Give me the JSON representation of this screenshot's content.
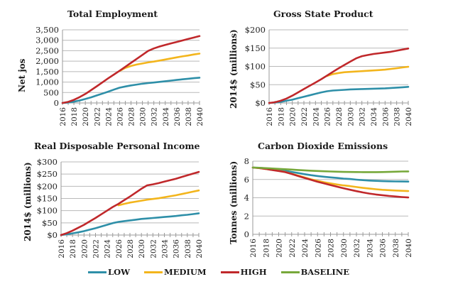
{
  "legend": [
    {
      "name": "LOW",
      "color": "#2e8fa8"
    },
    {
      "name": "MEDIUM",
      "color": "#f3b51c"
    },
    {
      "name": "HIGH",
      "color": "#c0282b"
    },
    {
      "name": "BASELINE",
      "color": "#77a83a"
    }
  ],
  "chart_data": [
    {
      "type": "line",
      "title": "Total Employment",
      "xlabel": "",
      "ylabel": "Net jos",
      "ylim": [
        0,
        3500
      ],
      "yticks": [
        0,
        500,
        1000,
        1500,
        2000,
        2500,
        3000,
        3500
      ],
      "ytick_labels": [
        "0",
        "500",
        "1,000",
        "1,500",
        "2,000",
        "2,500",
        "3,000",
        "3,500"
      ],
      "grid": true,
      "x": [
        2016,
        2017,
        2018,
        2019,
        2020,
        2021,
        2022,
        2023,
        2024,
        2025,
        2026,
        2027,
        2028,
        2029,
        2030,
        2031,
        2032,
        2033,
        2034,
        2035,
        2036,
        2037,
        2038,
        2039,
        2040
      ],
      "xtick_labels": [
        "2016",
        "2018",
        "2020",
        "2022",
        "2024",
        "2026",
        "2028",
        "2030",
        "2032",
        "2034",
        "2036",
        "2038",
        "2040"
      ],
      "series": [
        {
          "name": "LOW",
          "values": [
            0,
            20,
            60,
            120,
            190,
            270,
            360,
            450,
            540,
            640,
            730,
            790,
            840,
            880,
            920,
            950,
            980,
            1010,
            1040,
            1070,
            1100,
            1130,
            1160,
            1185,
            1210
          ]
        },
        {
          "name": "MEDIUM",
          "values": [
            null,
            null,
            null,
            null,
            null,
            null,
            null,
            null,
            null,
            null,
            1530,
            1680,
            1770,
            1840,
            1890,
            1940,
            1980,
            2030,
            2080,
            2130,
            2180,
            2230,
            2270,
            2320,
            2360
          ]
        },
        {
          "name": "HIGH",
          "values": [
            0,
            50,
            150,
            280,
            430,
            610,
            800,
            990,
            1180,
            1360,
            1540,
            1730,
            1920,
            2110,
            2300,
            2490,
            2610,
            2700,
            2780,
            2850,
            2920,
            2990,
            3060,
            3130,
            3200
          ]
        }
      ]
    },
    {
      "type": "line",
      "title": "Gross State Product",
      "xlabel": "",
      "ylabel": "2014$ (millions)",
      "ylim": [
        0,
        200
      ],
      "yticks": [
        0,
        50,
        100,
        150,
        200
      ],
      "ytick_labels": [
        "$0",
        "$50",
        "$100",
        "$150",
        "$200"
      ],
      "grid": true,
      "x": [
        2016,
        2017,
        2018,
        2019,
        2020,
        2021,
        2022,
        2023,
        2024,
        2025,
        2026,
        2027,
        2028,
        2029,
        2030,
        2031,
        2032,
        2033,
        2034,
        2035,
        2036,
        2037,
        2038,
        2039,
        2040
      ],
      "xtick_labels": [
        "2016",
        "2018",
        "2020",
        "2022",
        "2024",
        "2026",
        "2028",
        "2030",
        "2032",
        "2034",
        "2036",
        "2038",
        "2040"
      ],
      "series": [
        {
          "name": "LOW",
          "values": [
            0,
            1,
            3,
            6,
            9,
            13,
            17,
            21,
            25,
            29,
            32,
            34,
            35,
            36,
            37,
            37.5,
            38,
            38.5,
            39,
            39.5,
            40,
            41,
            42,
            43,
            44
          ]
        },
        {
          "name": "MEDIUM",
          "values": [
            null,
            null,
            null,
            null,
            null,
            null,
            null,
            null,
            null,
            null,
            74,
            79,
            82,
            84,
            85,
            86,
            87,
            88,
            89,
            90,
            91,
            93,
            95,
            97,
            99
          ]
        },
        {
          "name": "HIGH",
          "values": [
            0,
            2,
            6,
            12,
            20,
            29,
            38,
            47,
            56,
            65,
            75,
            85,
            95,
            104,
            113,
            122,
            128,
            131,
            134,
            136,
            138,
            140,
            143,
            146,
            149
          ]
        }
      ]
    },
    {
      "type": "line",
      "title": "Real Disposable Personal Income",
      "xlabel": "",
      "ylabel": "2014$ (millions)",
      "ylim": [
        0,
        300
      ],
      "yticks": [
        0,
        50,
        100,
        150,
        200,
        250,
        300
      ],
      "ytick_labels": [
        "$0",
        "$50",
        "$100",
        "$150",
        "$200",
        "$250",
        "$300"
      ],
      "grid": true,
      "x": [
        2016,
        2017,
        2018,
        2019,
        2020,
        2021,
        2022,
        2023,
        2024,
        2025,
        2026,
        2027,
        2028,
        2029,
        2030,
        2031,
        2032,
        2033,
        2034,
        2035,
        2036,
        2037,
        2038,
        2039,
        2040
      ],
      "xtick_labels": [
        "2016",
        "2018",
        "2020",
        "2022",
        "2024",
        "2026",
        "2028",
        "2030",
        "2032",
        "2034",
        "2036",
        "2038",
        "2040"
      ],
      "series": [
        {
          "name": "LOW",
          "values": [
            0,
            3,
            7,
            11,
            16,
            22,
            28,
            35,
            42,
            49,
            54,
            57,
            60,
            63,
            66,
            68,
            70,
            72,
            74,
            76,
            78,
            81,
            83,
            86,
            89
          ]
        },
        {
          "name": "MEDIUM",
          "values": [
            null,
            null,
            null,
            null,
            null,
            null,
            null,
            null,
            null,
            null,
            122,
            128,
            133,
            137,
            141,
            145,
            148,
            151,
            155,
            159,
            163,
            168,
            173,
            178,
            183
          ]
        },
        {
          "name": "HIGH",
          "values": [
            0,
            8,
            18,
            30,
            42,
            56,
            70,
            85,
            100,
            115,
            128,
            143,
            158,
            174,
            190,
            204,
            208,
            213,
            219,
            225,
            231,
            238,
            245,
            252,
            259
          ]
        }
      ]
    },
    {
      "type": "line",
      "title": "Carbon Dioxide Emissions",
      "xlabel": "",
      "ylabel": "Tonnes (millions)",
      "ylim": [
        0,
        8
      ],
      "yticks": [
        0,
        2,
        4,
        6,
        8
      ],
      "ytick_labels": [
        "0",
        "2",
        "4",
        "6",
        "8"
      ],
      "grid": true,
      "x": [
        2016,
        2017,
        2018,
        2019,
        2020,
        2021,
        2022,
        2023,
        2024,
        2025,
        2026,
        2027,
        2028,
        2029,
        2030,
        2031,
        2032,
        2033,
        2034,
        2035,
        2036,
        2037,
        2038,
        2039,
        2040
      ],
      "xtick_labels": [
        "2016",
        "2018",
        "2020",
        "2022",
        "2024",
        "2026",
        "2028",
        "2030",
        "2032",
        "2034",
        "2036",
        "2038",
        "2040"
      ],
      "series": [
        {
          "name": "LOW",
          "values": [
            7.3,
            7.28,
            7.22,
            7.15,
            7.05,
            6.95,
            6.82,
            6.7,
            6.58,
            6.47,
            6.38,
            6.3,
            6.23,
            6.17,
            6.1,
            6.05,
            5.98,
            5.93,
            5.88,
            5.85,
            5.82,
            5.8,
            5.79,
            5.78,
            5.77
          ]
        },
        {
          "name": "MEDIUM",
          "values": [
            7.3,
            7.25,
            7.15,
            7.05,
            6.95,
            6.82,
            6.62,
            6.42,
            6.22,
            6.02,
            5.85,
            5.7,
            5.57,
            5.45,
            5.35,
            5.27,
            5.17,
            5.08,
            5.0,
            4.93,
            4.87,
            4.83,
            4.79,
            4.76,
            4.73
          ]
        },
        {
          "name": "HIGH",
          "values": [
            7.3,
            7.25,
            7.15,
            7.03,
            6.93,
            6.8,
            6.6,
            6.38,
            6.17,
            5.96,
            5.75,
            5.57,
            5.39,
            5.21,
            5.04,
            4.88,
            4.72,
            4.58,
            4.46,
            4.36,
            4.28,
            4.2,
            4.14,
            4.08,
            4.03
          ]
        },
        {
          "name": "BASELINE",
          "values": [
            7.3,
            7.28,
            7.24,
            7.2,
            7.16,
            7.12,
            7.08,
            7.04,
            7.0,
            6.96,
            6.93,
            6.9,
            6.87,
            6.85,
            6.83,
            6.82,
            6.81,
            6.8,
            6.8,
            6.8,
            6.81,
            6.83,
            6.85,
            6.87,
            6.88
          ]
        }
      ]
    }
  ]
}
